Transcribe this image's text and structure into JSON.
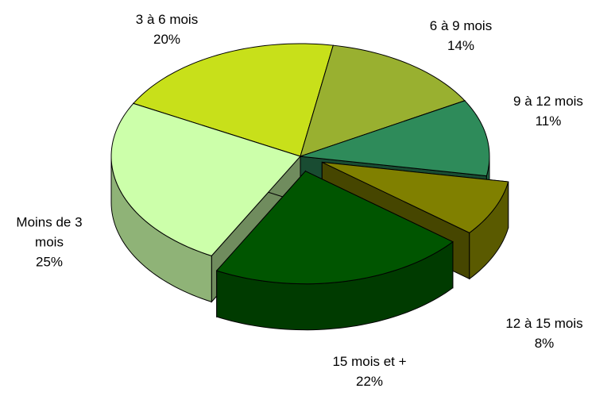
{
  "chart_data": {
    "type": "pie",
    "categories": [
      "Moins de 3 mois",
      "3 à 6 mois",
      "6 à 9 mois",
      "9 à 12 mois",
      "12 à 15 mois",
      "15 mois et +"
    ],
    "values": [
      25,
      20,
      14,
      11,
      8,
      22
    ],
    "value_labels": [
      "25%",
      "20%",
      "14%",
      "11%",
      "8%",
      "22%"
    ],
    "colors": [
      "#ccffaa",
      "#c8e01a",
      "#99b030",
      "#2e8b5a",
      "#808000",
      "#005500"
    ]
  }
}
